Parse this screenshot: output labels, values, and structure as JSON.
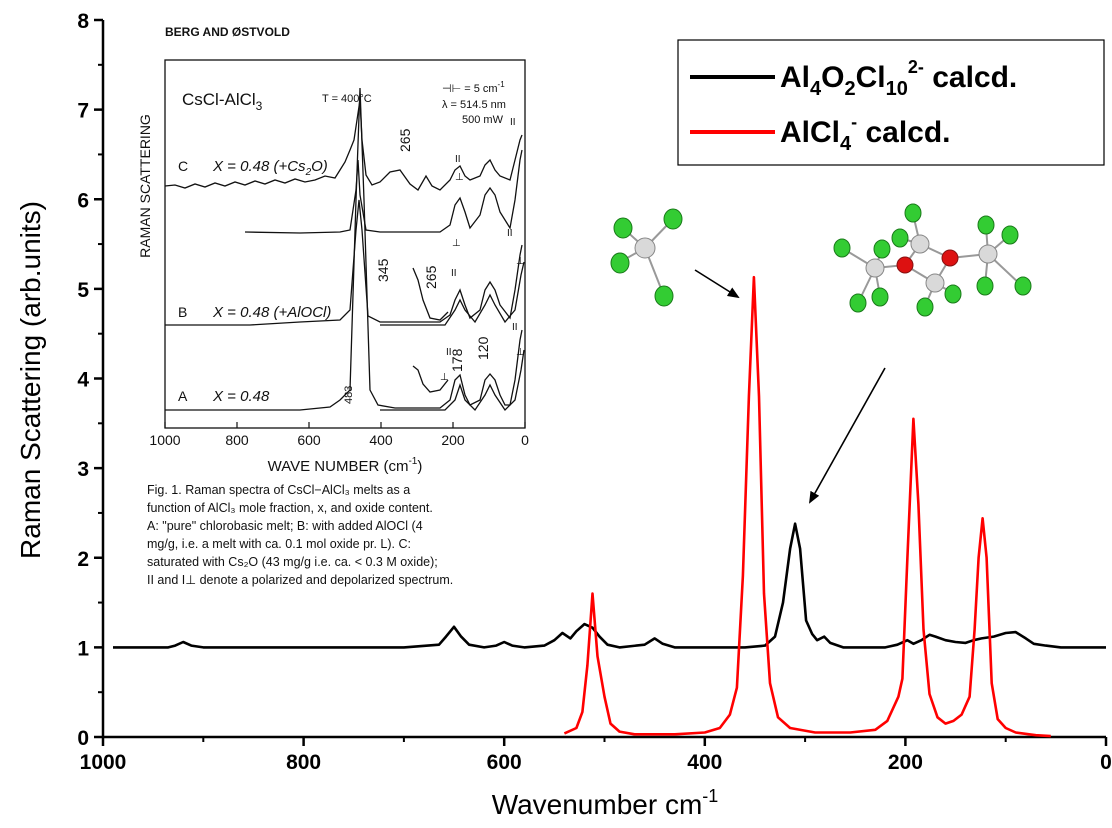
{
  "chart_data": {
    "type": "line",
    "xlabel": "Wavenumber cm",
    "xlabel_sup": "-1",
    "ylabel": "Raman Scattering (arb.units)",
    "xlim": [
      1000,
      0
    ],
    "ylim": [
      0,
      8
    ],
    "x_ticks": [
      1000,
      800,
      600,
      400,
      200,
      0
    ],
    "y_ticks": [
      0,
      1,
      2,
      3,
      4,
      5,
      6,
      7,
      8
    ],
    "grid": false,
    "legend_position": "top-right",
    "series": [
      {
        "name": "Al4O2Cl10 2- calcd.",
        "color": "#000000",
        "points": [
          [
            990,
            1.0
          ],
          [
            935,
            1.0
          ],
          [
            928,
            1.02
          ],
          [
            920,
            1.06
          ],
          [
            912,
            1.02
          ],
          [
            900,
            1.0
          ],
          [
            800,
            1.0
          ],
          [
            700,
            1.0
          ],
          [
            665,
            1.03
          ],
          [
            658,
            1.12
          ],
          [
            650,
            1.23
          ],
          [
            643,
            1.12
          ],
          [
            635,
            1.03
          ],
          [
            620,
            1.0
          ],
          [
            608,
            1.02
          ],
          [
            600,
            1.06
          ],
          [
            592,
            1.02
          ],
          [
            580,
            1.0
          ],
          [
            560,
            1.02
          ],
          [
            550,
            1.08
          ],
          [
            542,
            1.16
          ],
          [
            534,
            1.1
          ],
          [
            528,
            1.18
          ],
          [
            520,
            1.26
          ],
          [
            512,
            1.22
          ],
          [
            505,
            1.12
          ],
          [
            497,
            1.03
          ],
          [
            485,
            1.0
          ],
          [
            460,
            1.03
          ],
          [
            450,
            1.1
          ],
          [
            442,
            1.04
          ],
          [
            430,
            1.0
          ],
          [
            360,
            1.0
          ],
          [
            340,
            1.02
          ],
          [
            330,
            1.12
          ],
          [
            322,
            1.5
          ],
          [
            315,
            2.1
          ],
          [
            310,
            2.38
          ],
          [
            305,
            2.1
          ],
          [
            299,
            1.3
          ],
          [
            293,
            1.15
          ],
          [
            288,
            1.08
          ],
          [
            281,
            1.12
          ],
          [
            275,
            1.05
          ],
          [
            262,
            1.0
          ],
          [
            220,
            1.0
          ],
          [
            208,
            1.03
          ],
          [
            198,
            1.08
          ],
          [
            192,
            1.04
          ],
          [
            184,
            1.08
          ],
          [
            176,
            1.14
          ],
          [
            170,
            1.12
          ],
          [
            160,
            1.08
          ],
          [
            150,
            1.06
          ],
          [
            140,
            1.05
          ],
          [
            132,
            1.08
          ],
          [
            124,
            1.1
          ],
          [
            112,
            1.12
          ],
          [
            100,
            1.16
          ],
          [
            90,
            1.17
          ],
          [
            80,
            1.1
          ],
          [
            72,
            1.04
          ],
          [
            60,
            1.02
          ],
          [
            45,
            1.0
          ],
          [
            0,
            1.0
          ]
        ]
      },
      {
        "name": "AlCl4 - calcd.",
        "color": "#ff0000",
        "points": [
          [
            540,
            0.04
          ],
          [
            528,
            0.1
          ],
          [
            522,
            0.28
          ],
          [
            517,
            0.8
          ],
          [
            512,
            1.6
          ],
          [
            507,
            0.9
          ],
          [
            500,
            0.45
          ],
          [
            494,
            0.15
          ],
          [
            485,
            0.06
          ],
          [
            470,
            0.03
          ],
          [
            430,
            0.03
          ],
          [
            400,
            0.05
          ],
          [
            385,
            0.1
          ],
          [
            375,
            0.25
          ],
          [
            368,
            0.55
          ],
          [
            362,
            1.8
          ],
          [
            356,
            3.8
          ],
          [
            351,
            5.13
          ],
          [
            346,
            3.8
          ],
          [
            341,
            1.6
          ],
          [
            335,
            0.6
          ],
          [
            327,
            0.22
          ],
          [
            315,
            0.1
          ],
          [
            290,
            0.05
          ],
          [
            255,
            0.05
          ],
          [
            230,
            0.08
          ],
          [
            218,
            0.18
          ],
          [
            207,
            0.45
          ],
          [
            203,
            0.65
          ],
          [
            198,
            2.0
          ],
          [
            192,
            3.55
          ],
          [
            187,
            2.6
          ],
          [
            182,
            1.2
          ],
          [
            176,
            0.48
          ],
          [
            168,
            0.22
          ],
          [
            160,
            0.15
          ],
          [
            152,
            0.18
          ],
          [
            144,
            0.25
          ],
          [
            136,
            0.45
          ],
          [
            131,
            1.2
          ],
          [
            127,
            2.0
          ],
          [
            123,
            2.44
          ],
          [
            119,
            2.0
          ],
          [
            114,
            0.6
          ],
          [
            108,
            0.2
          ],
          [
            100,
            0.1
          ],
          [
            90,
            0.05
          ],
          [
            70,
            0.02
          ],
          [
            55,
            0.01
          ]
        ]
      }
    ],
    "legend": {
      "entries": [
        {
          "text_parts": [
            "Al",
            "4",
            "O",
            "2",
            "Cl",
            "10",
            "2-",
            " calcd."
          ],
          "color": "#000000"
        },
        {
          "text_parts": [
            "AlCl",
            "4",
            "-",
            " calcd."
          ],
          "color": "#ff0000"
        }
      ]
    }
  },
  "inset": {
    "header": "BERG AND ØSTVOLD",
    "system": "CsCl-AlCl",
    "system_sub": "3",
    "temperature": "T = 400°C",
    "params": [
      "⊣⊢ = 5 cm",
      "λ  = 514.5 nm",
      "500 mW"
    ],
    "params_sup": "-1",
    "ylabel": "RAMAN SCATTERING",
    "xlabel": "WAVE NUMBER (cm",
    "xlabel_sup": "-1",
    "xlabel_end": ")",
    "xlim": [
      1000,
      0
    ],
    "x_ticks": [
      1000,
      800,
      600,
      400,
      200,
      0
    ],
    "traces": {
      "A_label": "A",
      "A_text": "X = 0.48",
      "B_label": "B",
      "B_text": "X = 0.48 (+AlOCl)",
      "C_label": "C",
      "C_text": "X = 0.48 (+Cs",
      "C_sub": "2",
      "C_end": "O)"
    },
    "peak_labels": [
      "483",
      "345",
      "265",
      "265",
      "178",
      "120"
    ],
    "polarization_labels": [
      "II",
      "⊥",
      "II",
      "⊥",
      "II",
      "⊥",
      "II",
      "II",
      "⊥",
      "II",
      "⊥"
    ]
  },
  "caption": {
    "lines": [
      "Fig. 1. Raman spectra of CsCl−AlCl₃ melts as a",
      "function of AlCl₃ mole fraction, x, and oxide content.",
      "A: \"pure\" chlorobasic melt; B: with added AlOCl (4",
      "mg/g, i.e. a melt with ca. 0.1 mol oxide pr. L). C:",
      "saturated with Cs₂O (43 mg/g i.e. ca. < 0.3 M oxide);",
      "II and I⊥ denote a polarized and depolarized spectrum."
    ]
  }
}
